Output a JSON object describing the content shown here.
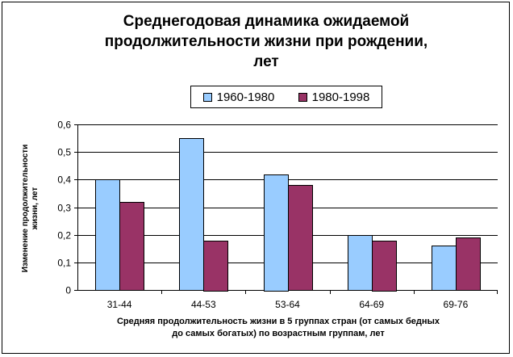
{
  "chart_data": {
    "type": "bar",
    "title": "Среднегодовая динамика ожидаемой\nпродолжительности жизни при рождении,\nлет",
    "xlabel": "Средняя продолжительность жизни в 5 группах стран (от самых бедных\nдо самых богатых) по возрастным группам, лет",
    "ylabel": "Изменение продолжительности\nжизни, лет",
    "categories": [
      "31-44",
      "44-53",
      "53-64",
      "64-69",
      "69-76"
    ],
    "series": [
      {
        "name": "1960-1980",
        "values": [
          0.4,
          0.55,
          0.42,
          0.2,
          0.16
        ],
        "color": "#99ccff"
      },
      {
        "name": "1980-1998",
        "values": [
          0.32,
          0.18,
          0.38,
          0.18,
          0.19
        ],
        "color": "#993366"
      }
    ],
    "ylim": [
      0,
      0.6
    ],
    "yticks": [
      "0",
      "0,1",
      "0,2",
      "0,3",
      "0,4",
      "0,5",
      "0,6"
    ],
    "grid": true,
    "legend": "top"
  }
}
